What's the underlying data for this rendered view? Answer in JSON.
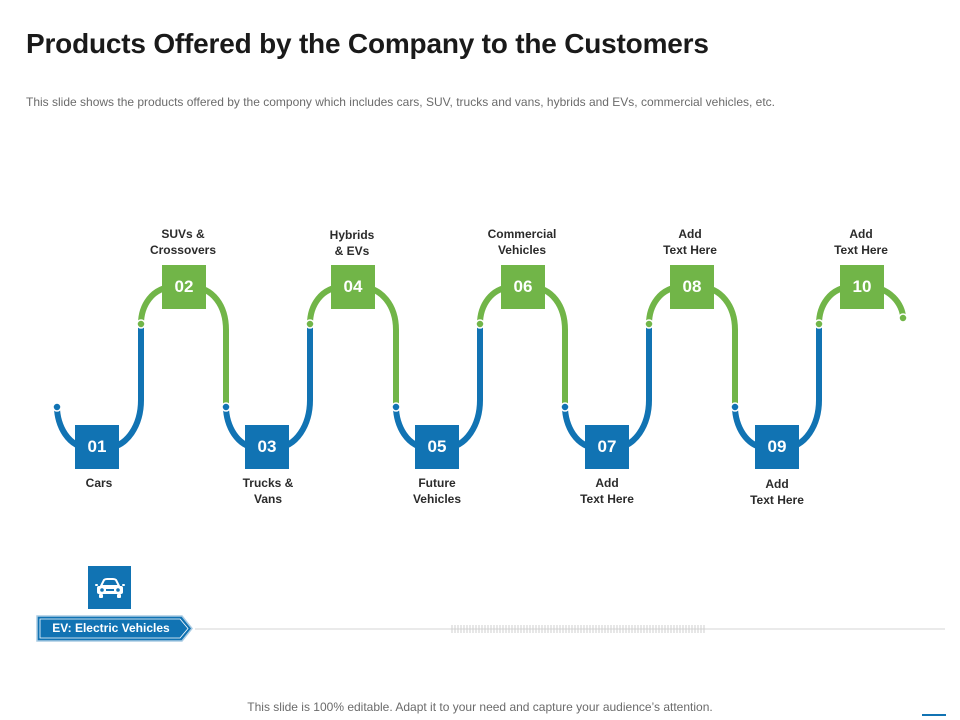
{
  "header": {
    "title": "Products Offered by the Company to the Customers",
    "subtitle": "This slide shows the products offered by the compony which includes cars, SUV, trucks and vans, hybrids and EVs, commercial vehicles, etc."
  },
  "steps": [
    {
      "number": "01",
      "line1": "Cars",
      "line2": ""
    },
    {
      "number": "02",
      "line1": "SUVs &",
      "line2": "Crossovers"
    },
    {
      "number": "03",
      "line1": "Trucks &",
      "line2": "Vans"
    },
    {
      "number": "04",
      "line1": "Hybrids",
      "line2": "& EVs"
    },
    {
      "number": "05",
      "line1": "Future",
      "line2": "Vehicles"
    },
    {
      "number": "06",
      "line1": "Commercial",
      "line2": "Vehicles"
    },
    {
      "number": "07",
      "line1": "Add",
      "line2": "Text Here"
    },
    {
      "number": "08",
      "line1": "Add",
      "line2": "Text Here"
    },
    {
      "number": "09",
      "line1": "Add",
      "line2": "Text Here"
    },
    {
      "number": "10",
      "line1": "Add",
      "line2": "Text Here"
    }
  ],
  "legend": {
    "ev_label": "EV: Electric Vehicles",
    "icon": "car-icon"
  },
  "footer": {
    "text": "This slide is 100% editable. Adapt it to your need and capture your audience’s attention."
  },
  "colors": {
    "blue": "#1173b3",
    "green": "#71b548"
  }
}
